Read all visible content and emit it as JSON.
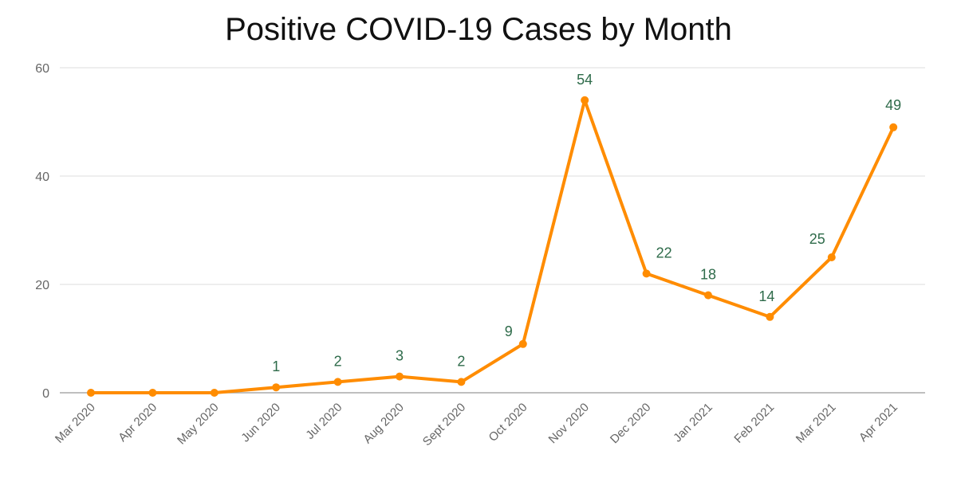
{
  "chart_data": {
    "type": "line",
    "title": "Positive COVID-19 Cases by Month",
    "xlabel": "",
    "ylabel": "",
    "categories": [
      "Mar 2020",
      "Apr 2020",
      "May 2020",
      "Jun 2020",
      "Jul 2020",
      "Aug 2020",
      "Sept 2020",
      "Oct 2020",
      "Nov 2020",
      "Dec 2020",
      "Jan 2021",
      "Feb 2021",
      "Mar 2021",
      "Apr 2021"
    ],
    "series": [
      {
        "values": [
          0,
          0,
          0,
          1,
          2,
          3,
          2,
          9,
          54,
          22,
          18,
          14,
          25,
          49
        ],
        "data_labels": [
          "",
          "",
          "",
          "1",
          "2",
          "3",
          "2",
          "9",
          "54",
          "22",
          "18",
          "14",
          "25",
          "49"
        ]
      }
    ],
    "ylim": [
      0,
      60
    ],
    "yticks": [
      "0",
      "20",
      "40",
      "60"
    ],
    "grid": true,
    "legend": "none",
    "colors": {
      "line": "#ff8c00",
      "data_label": "#2e6b4a",
      "gridline": "#dddddd",
      "axis": "#aaaaaa",
      "tick_text": "#666666",
      "title": "#111111"
    }
  }
}
